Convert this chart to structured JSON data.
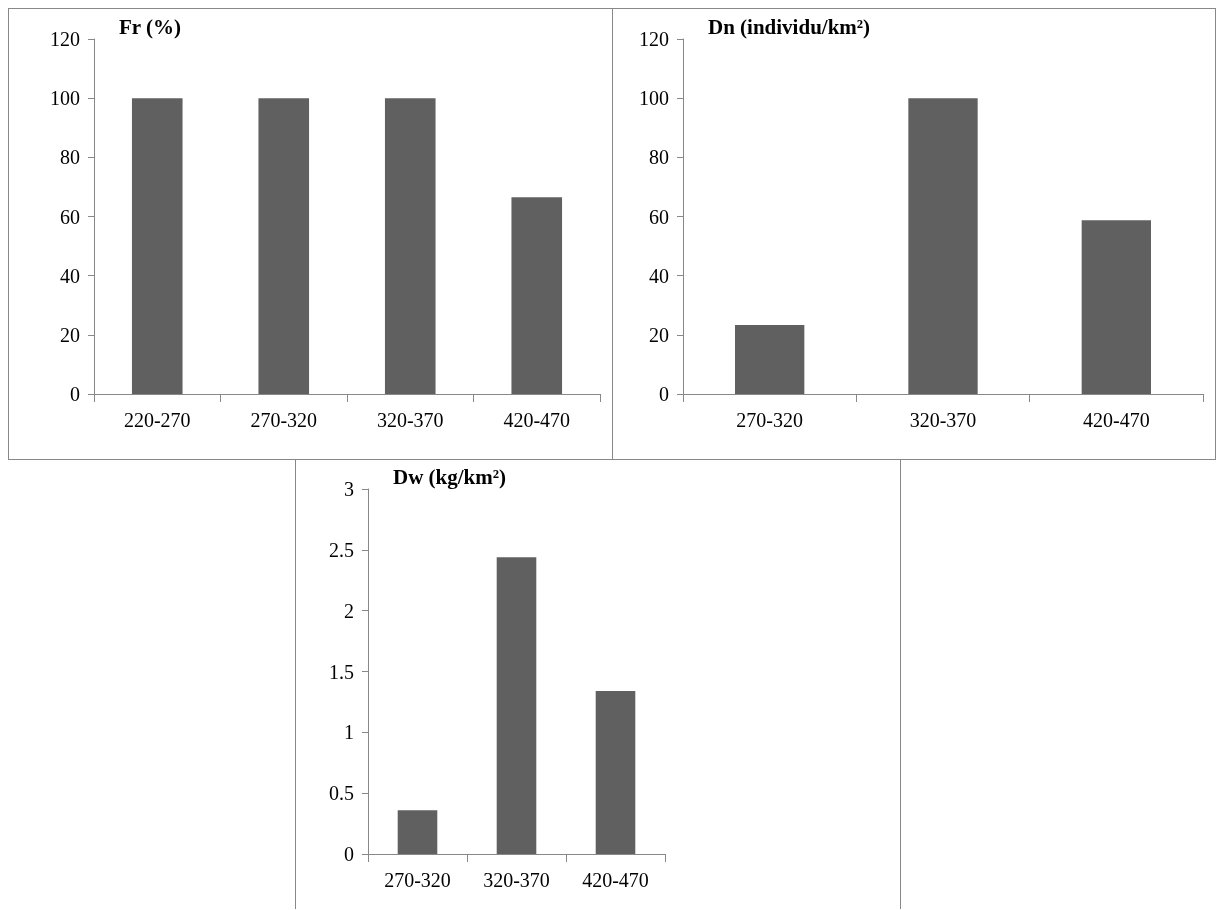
{
  "chart_data": [
    {
      "type": "bar",
      "title": "Fr (%)",
      "categories": [
        "220-270",
        "270-320",
        "320-370",
        "420-470"
      ],
      "values": [
        100,
        100,
        100,
        66.5
      ],
      "color": "#606060",
      "ylim": [
        0,
        120
      ],
      "yticks": [
        0,
        20,
        40,
        60,
        80,
        100,
        120
      ],
      "grid": false
    },
    {
      "type": "bar",
      "title": "Dn (individu/km²)",
      "categories": [
        "270-320",
        "320-370",
        "420-470"
      ],
      "values": [
        23.3,
        100,
        58.7
      ],
      "color": "#606060",
      "ylim": [
        0,
        120
      ],
      "yticks": [
        0,
        20,
        40,
        60,
        80,
        100,
        120
      ],
      "grid": false
    },
    {
      "type": "bar",
      "title": "Dw (kg/km²)",
      "categories": [
        "270-320",
        "320-370",
        "420-470"
      ],
      "values": [
        0.36,
        2.44,
        1.34
      ],
      "color": "#606060",
      "ylim": [
        0,
        3
      ],
      "yticks": [
        0,
        0.5,
        1,
        1.5,
        2,
        2.5,
        3
      ],
      "grid": false
    }
  ]
}
